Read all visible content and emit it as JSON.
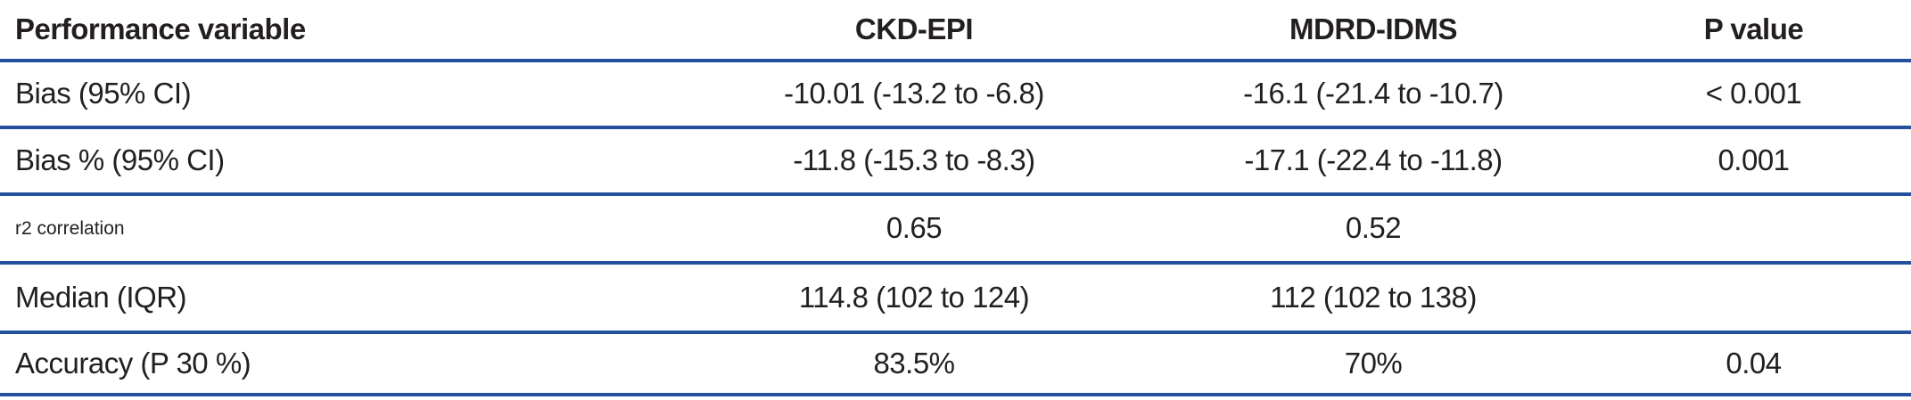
{
  "table": {
    "columns": [
      {
        "label": "Performance variable"
      },
      {
        "label": "CKD-EPI"
      },
      {
        "label": "MDRD-IDMS"
      },
      {
        "label": "P value"
      }
    ],
    "rows": [
      {
        "variable": "Bias (95% CI)",
        "ckd_epi": "-10.01 (-13.2 to -6.8)",
        "mdrd_idms": "-16.1 (-21.4 to -10.7)",
        "p_value": "< 0.001"
      },
      {
        "variable": "Bias % (95% CI)",
        "ckd_epi": "-11.8 (-15.3 to -8.3)",
        "mdrd_idms": "-17.1 (-22.4 to -11.8)",
        "p_value": "0.001"
      },
      {
        "variable": "r2 correlation",
        "ckd_epi": "0.65",
        "mdrd_idms": "0.52",
        "p_value": ""
      },
      {
        "variable": "Median (IQR)",
        "ckd_epi": "114.8 (102 to 124)",
        "mdrd_idms": "112 (102 to 138)",
        "p_value": ""
      },
      {
        "variable": "Accuracy (P 30 %)",
        "ckd_epi": "83.5%",
        "mdrd_idms": "70%",
        "p_value": "0.04"
      }
    ]
  },
  "colors": {
    "rule": "#24509e",
    "text": "#231f20"
  }
}
